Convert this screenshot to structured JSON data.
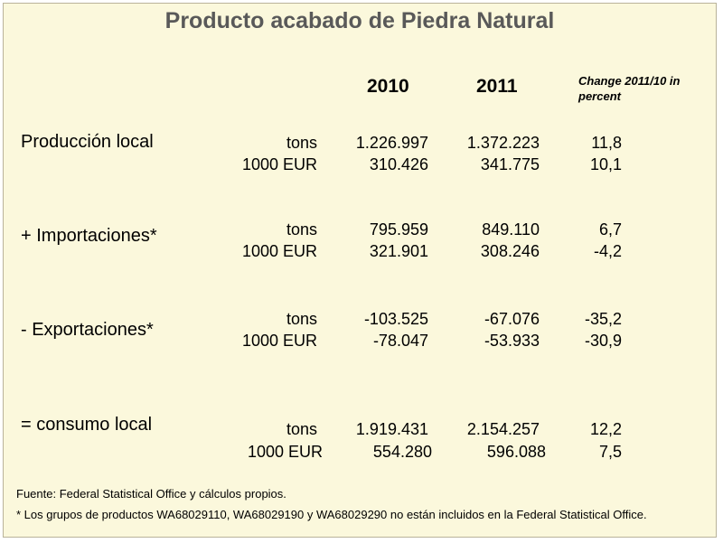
{
  "title": "Producto acabado de Piedra Natural",
  "headers": {
    "y2010": "2010",
    "y2011": "2011",
    "change": "Change 2011/10 in percent"
  },
  "groups": [
    {
      "label": "Producción local",
      "rows": [
        {
          "unit": "tons",
          "v2010": "1.226.997",
          "v2011": "1.372.223",
          "change": "11,8"
        },
        {
          "unit": "1000 EUR",
          "v2010": "310.426",
          "v2011": "341.775",
          "change": "10,1"
        }
      ]
    },
    {
      "label": "+ Importaciones*",
      "rows": [
        {
          "unit": "tons",
          "v2010": "795.959",
          "v2011": "849.110",
          "change": "6,7"
        },
        {
          "unit": "1000 EUR",
          "v2010": "321.901",
          "v2011": "308.246",
          "change": "-4,2"
        }
      ]
    },
    {
      "label": "- Exportaciones*",
      "rows": [
        {
          "unit": "tons",
          "v2010": "-103.525",
          "v2011": "-67.076",
          "change": "-35,2"
        },
        {
          "unit": "1000 EUR",
          "v2010": "-78.047",
          "v2011": "-53.933",
          "change": "-30,9"
        }
      ]
    },
    {
      "label": "= consumo local",
      "rows": [
        {
          "unit": "tons",
          "v2010": "1.919.431",
          "v2011": "2.154.257",
          "change": "12,2"
        },
        {
          "unit": "1000 EUR",
          "v2010": "554.280",
          "v2011": "596.088",
          "change": "7,5"
        }
      ]
    }
  ],
  "footer": {
    "source": "Fuente: Federal Statistical Office y cálculos propios.",
    "note": "* Los grupos de productos WA68029110, WA68029190 y WA68029290 no están incluidos en la Federal Statistical Office."
  },
  "colors": {
    "background": "#fbf8dc",
    "title": "#595959"
  }
}
